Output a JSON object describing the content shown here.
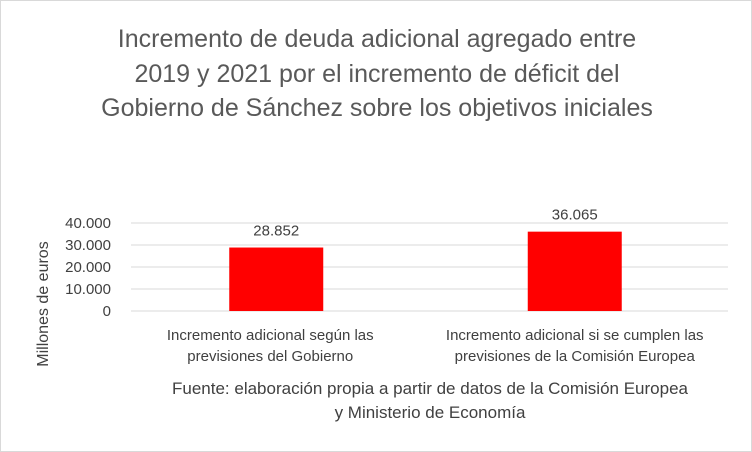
{
  "chart_data": {
    "type": "bar",
    "title_lines": [
      "Incremento de deuda adicional agregado entre",
      "2019 y 2021 por el incremento de déficit del",
      "Gobierno de Sánchez sobre los objetivos iniciales"
    ],
    "categories": [
      [
        "Incremento adicional según las",
        "previsiones del Gobierno"
      ],
      [
        "Incremento  adicional si se cumplen las",
        "previsiones de la Comisión Europea"
      ]
    ],
    "values": [
      28852,
      36065
    ],
    "value_labels": [
      "28.852",
      "36.065"
    ],
    "ylabel": "Millones de euros",
    "ylim": [
      0,
      40000
    ],
    "yticks": [
      0,
      10000,
      20000,
      30000,
      40000
    ],
    "ytick_labels": [
      "0",
      "10.000",
      "20.000",
      "30.000",
      "40.000"
    ],
    "grid": true,
    "bar_color": "#ff0000",
    "source_lines": [
      "Fuente: elaboración propia a partir de datos de la Comisión Europea",
      "y Ministerio de Economía"
    ]
  }
}
